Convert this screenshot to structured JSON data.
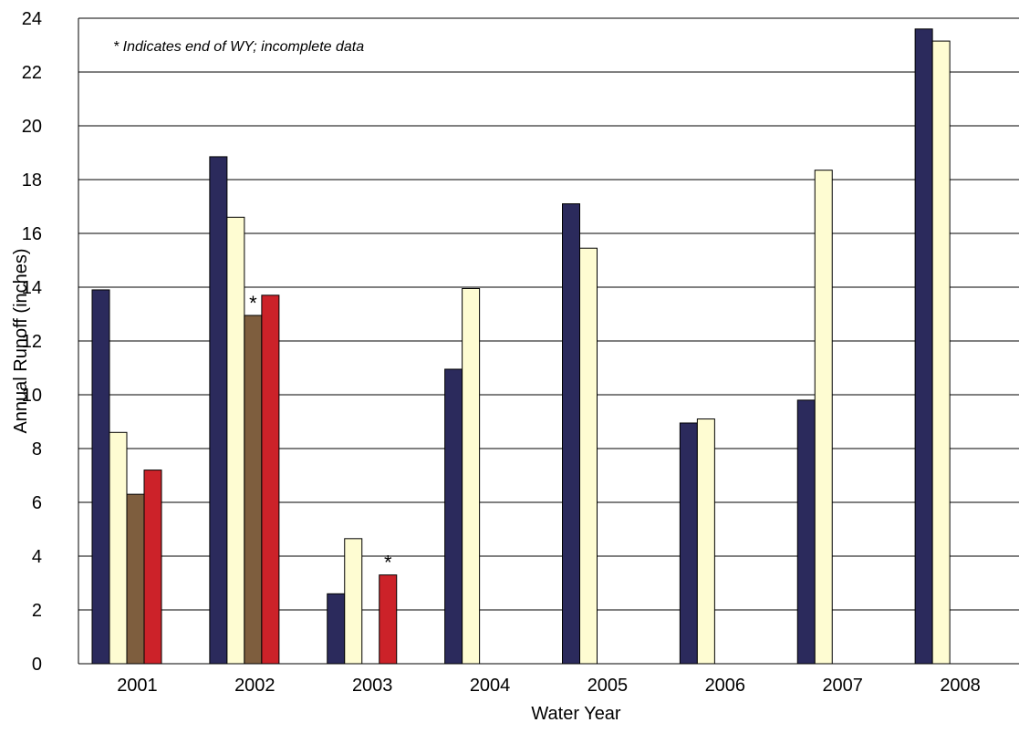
{
  "chart_data": {
    "type": "bar",
    "categories": [
      "2001",
      "2002",
      "2003",
      "2004",
      "2005",
      "2006",
      "2007",
      "2008"
    ],
    "series": [
      {
        "color": "#2b2a5c",
        "values": [
          13.9,
          18.85,
          2.6,
          10.95,
          17.1,
          8.95,
          9.8,
          23.6
        ]
      },
      {
        "color": "#fefcd2",
        "values": [
          8.6,
          16.6,
          4.65,
          13.95,
          15.45,
          9.1,
          18.35,
          23.15
        ]
      },
      {
        "color": "#7e5e3e",
        "values": [
          6.3,
          12.95,
          null,
          null,
          null,
          null,
          null,
          null
        ]
      },
      {
        "color": "#cc2229",
        "values": [
          7.2,
          13.7,
          3.3,
          null,
          null,
          null,
          null,
          null
        ]
      }
    ],
    "annotation": "* Indicates end of WY; incomplete data",
    "incomplete_marker": "*",
    "incomplete_points": [
      {
        "series": 2,
        "category": "2002"
      },
      {
        "series": 3,
        "category": "2003"
      }
    ],
    "xlabel": "Water Year",
    "ylabel": "Annual Runoff (inches)",
    "ylim": [
      0,
      24
    ],
    "yticks": [
      0,
      2,
      4,
      6,
      8,
      10,
      12,
      14,
      16,
      18,
      20,
      22,
      24
    ],
    "grid": true,
    "legend": "none"
  }
}
